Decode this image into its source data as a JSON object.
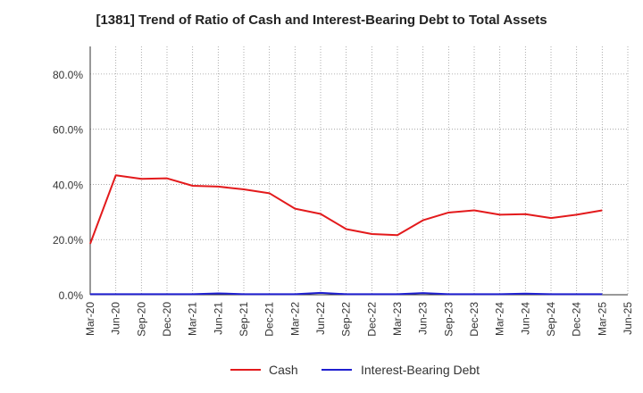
{
  "chart_data": {
    "type": "line",
    "title": "[1381]  Trend of Ratio of Cash and Interest-Bearing Debt to Total Assets",
    "xlabel": "",
    "ylabel": "",
    "categories": [
      "Mar-20",
      "Jun-20",
      "Sep-20",
      "Dec-20",
      "Mar-21",
      "Jun-21",
      "Sep-21",
      "Dec-21",
      "Mar-22",
      "Jun-22",
      "Sep-22",
      "Dec-22",
      "Mar-23",
      "Jun-23",
      "Sep-23",
      "Dec-23",
      "Mar-24",
      "Jun-24",
      "Sep-24",
      "Dec-24",
      "Mar-25",
      "Jun-25"
    ],
    "ylim": [
      0,
      90
    ],
    "yticks": [
      0,
      20,
      40,
      60,
      80
    ],
    "ytick_labels": [
      "0.0%",
      "20.0%",
      "40.0%",
      "60.0%",
      "80.0%"
    ],
    "grid": true,
    "legend_position": "bottom",
    "series": [
      {
        "name": "Cash",
        "color": "#e31a1c",
        "values": [
          18.5,
          43.3,
          42.0,
          42.2,
          39.5,
          39.2,
          38.2,
          36.8,
          31.2,
          29.3,
          23.8,
          22.0,
          21.6,
          27.0,
          29.8,
          30.6,
          29.0,
          29.2,
          27.8,
          29.0,
          30.6,
          null
        ]
      },
      {
        "name": "Interest-Bearing Debt",
        "color": "#1f1fd0",
        "values": [
          0.2,
          0.2,
          0.2,
          0.2,
          0.2,
          0.5,
          0.2,
          0.2,
          0.2,
          0.7,
          0.2,
          0.2,
          0.2,
          0.6,
          0.2,
          0.2,
          0.2,
          0.4,
          0.2,
          0.2,
          0.2,
          null
        ]
      }
    ]
  }
}
